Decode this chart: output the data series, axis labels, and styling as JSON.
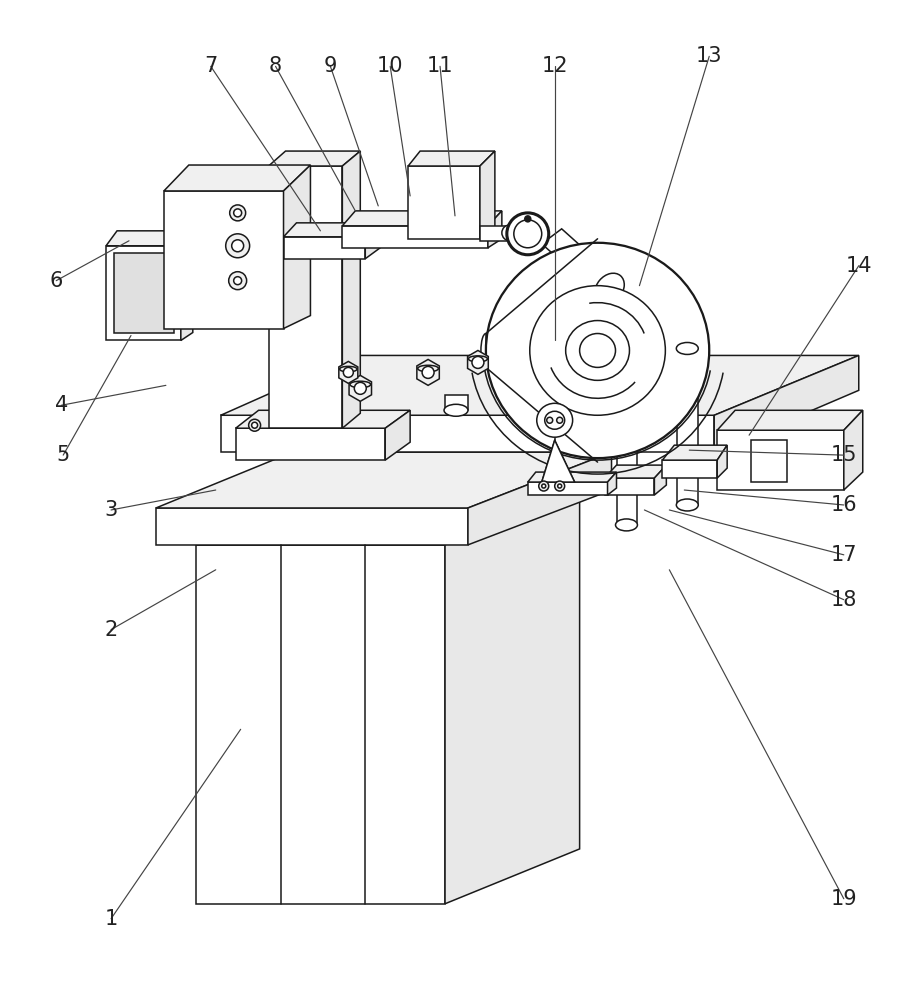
{
  "bg": "#ffffff",
  "lc": "#1a1a1a",
  "lw": 1.1,
  "fs": 15,
  "fc": "#222222",
  "labels": [
    [
      "1",
      110,
      920,
      240,
      730
    ],
    [
      "2",
      110,
      630,
      215,
      570
    ],
    [
      "3",
      110,
      510,
      215,
      490
    ],
    [
      "4",
      60,
      405,
      165,
      385
    ],
    [
      "5",
      62,
      455,
      130,
      335
    ],
    [
      "6",
      55,
      280,
      128,
      240
    ],
    [
      "7",
      210,
      65,
      320,
      230
    ],
    [
      "8",
      275,
      65,
      355,
      210
    ],
    [
      "9",
      330,
      65,
      378,
      205
    ],
    [
      "10",
      390,
      65,
      410,
      195
    ],
    [
      "11",
      440,
      65,
      455,
      215
    ],
    [
      "12",
      555,
      65,
      555,
      340
    ],
    [
      "13",
      710,
      55,
      640,
      285
    ],
    [
      "14",
      860,
      265,
      750,
      435
    ],
    [
      "15",
      845,
      455,
      690,
      450
    ],
    [
      "16",
      845,
      505,
      685,
      490
    ],
    [
      "17",
      845,
      555,
      670,
      510
    ],
    [
      "18",
      845,
      600,
      645,
      510
    ],
    [
      "19",
      845,
      900,
      670,
      570
    ]
  ]
}
